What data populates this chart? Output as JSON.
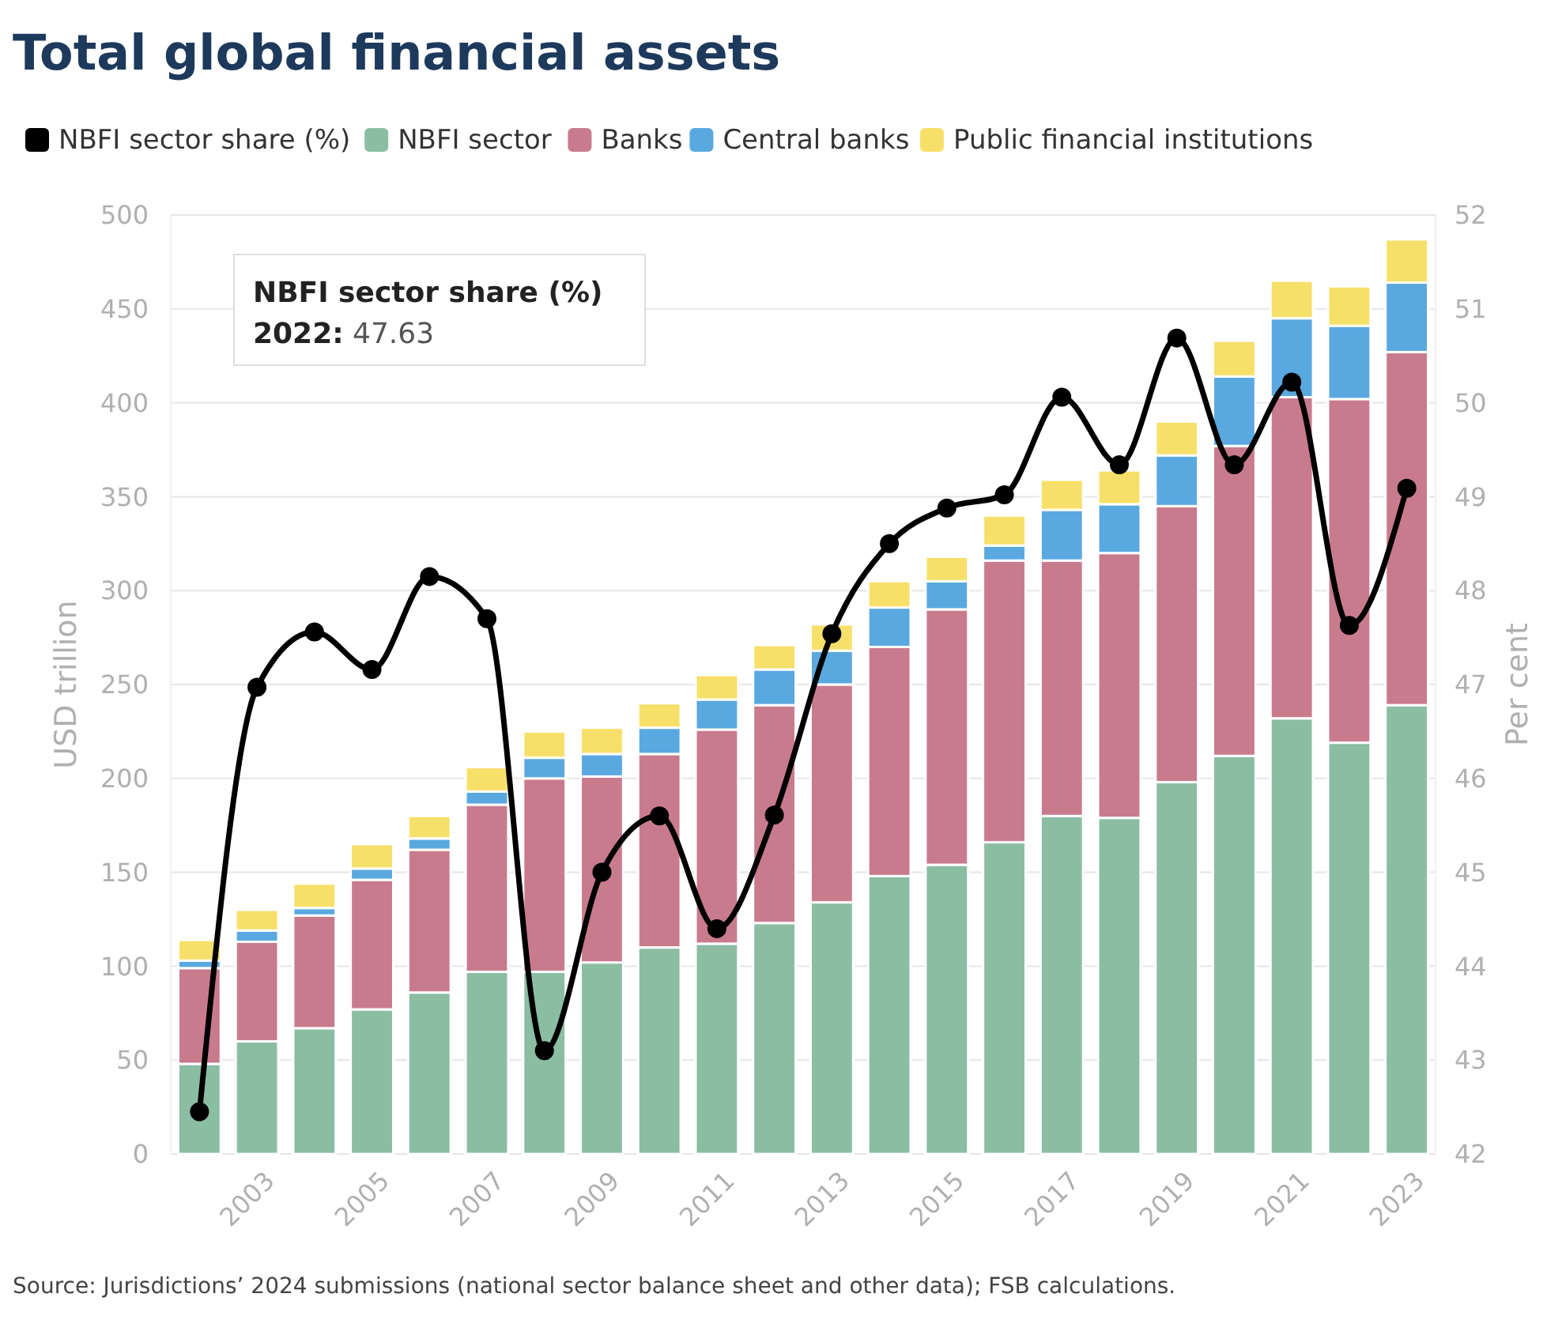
{
  "chart_data": {
    "type": "bar",
    "title": "Total global financial assets",
    "stacked": true,
    "x": [
      2002,
      2003,
      2004,
      2005,
      2006,
      2007,
      2008,
      2009,
      2010,
      2011,
      2012,
      2013,
      2014,
      2015,
      2016,
      2017,
      2018,
      2019,
      2020,
      2021,
      2022,
      2023
    ],
    "xlim": [
      2001.5,
      2023.5
    ],
    "xticks": [
      2003,
      2005,
      2007,
      2009,
      2011,
      2013,
      2015,
      2017,
      2019,
      2021,
      2023
    ],
    "ylabel": "USD trillion",
    "y2label": "Per cent",
    "ylim": [
      0,
      500
    ],
    "yticks": [
      0,
      50,
      100,
      150,
      200,
      250,
      300,
      350,
      400,
      450,
      500
    ],
    "y2lim": [
      42,
      52
    ],
    "y2ticks": [
      42,
      43,
      44,
      45,
      46,
      47,
      48,
      49,
      50,
      51,
      52
    ],
    "grid": "y",
    "legend": "top",
    "marker": "circle",
    "line_style": "solid",
    "series": [
      {
        "name": "NBFI sector share (%)",
        "type": "line",
        "axis": "y2",
        "color": "#000000",
        "values": [
          42.45,
          46.97,
          47.56,
          47.16,
          48.15,
          47.7,
          43.1,
          45.0,
          45.6,
          44.4,
          45.61,
          47.54,
          48.5,
          48.88,
          49.02,
          50.06,
          49.34,
          50.69,
          49.34,
          50.22,
          47.63,
          49.09
        ]
      },
      {
        "name": "NBFI sector",
        "color": "#8bbda3",
        "values": [
          48,
          60,
          67,
          77,
          86,
          97,
          97,
          102,
          110,
          112,
          123,
          134,
          148,
          154,
          166,
          180,
          179,
          198,
          212,
          232,
          219,
          239
        ]
      },
      {
        "name": "Banks",
        "color": "#c97b8e",
        "values": [
          51,
          53,
          60,
          69,
          76,
          89,
          103,
          99,
          103,
          114,
          116,
          116,
          122,
          136,
          150,
          136,
          141,
          147,
          165,
          171,
          183,
          188
        ]
      },
      {
        "name": "Central banks",
        "color": "#5aa8e0",
        "values": [
          4,
          6,
          4,
          6,
          6,
          7,
          11,
          12,
          14,
          16,
          19,
          18,
          21,
          15,
          8,
          27,
          26,
          27,
          37,
          42,
          39,
          37
        ]
      },
      {
        "name": "Public financial institutions",
        "color": "#f7e06a",
        "values": [
          11,
          11,
          13,
          13,
          12,
          13,
          14,
          14,
          13,
          13,
          13,
          14,
          14,
          13,
          16,
          16,
          18,
          18,
          19,
          20,
          21,
          23
        ]
      }
    ],
    "annotations": [
      "NBFI sector share (%)\n2022: 47.63",
      "Source: Jurisdictions’ 2024 submissions (national sector balance sheet and other data); FSB calculations."
    ]
  }
}
